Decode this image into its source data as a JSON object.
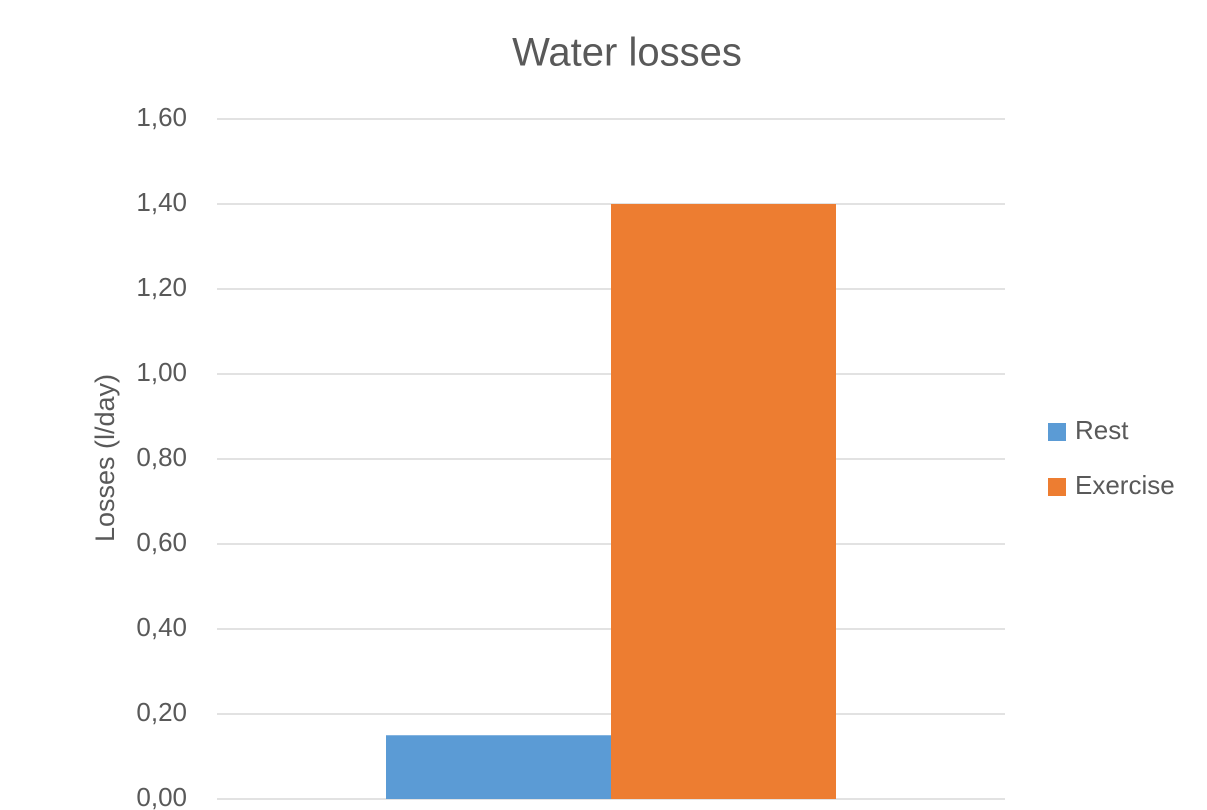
{
  "chart_data": {
    "type": "bar",
    "title": "Water losses",
    "y_label": "Losses (l/day)",
    "categories": [
      null
    ],
    "series": [
      {
        "name": "Rest",
        "color": "#5b9bd5",
        "values": [
          0.15
        ]
      },
      {
        "name": "Exercise",
        "color": "#ed7d31",
        "values": [
          1.4
        ]
      }
    ],
    "ylim": [
      0,
      1.6
    ],
    "yticks": [
      {
        "value": 0,
        "label": "0,00"
      },
      {
        "value": 0.2,
        "label": "0,20"
      },
      {
        "value": 0.4,
        "label": "0,40"
      },
      {
        "value": 0.6,
        "label": "0,60"
      },
      {
        "value": 0.8,
        "label": "0,80"
      },
      {
        "value": 1.0,
        "label": "1,00"
      },
      {
        "value": 1.2,
        "label": "1,20"
      },
      {
        "value": 1.4,
        "label": "1,40"
      },
      {
        "value": 1.6,
        "label": "1,60"
      }
    ],
    "grid": true,
    "legend": "right"
  }
}
